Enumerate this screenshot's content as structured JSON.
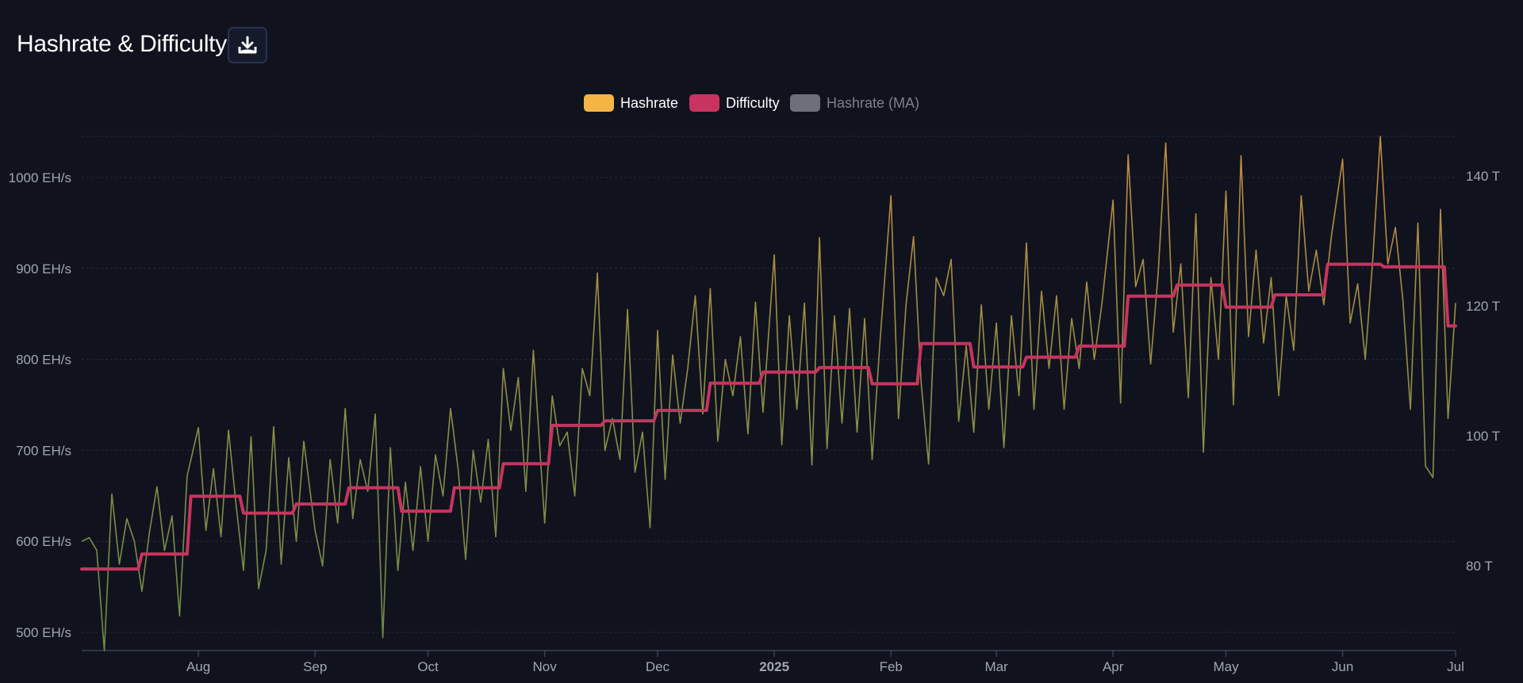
{
  "header": {
    "title": "Hashrate & Difficulty",
    "download_icon": "download-icon"
  },
  "colors": {
    "background": "#10131e",
    "hashrate_low": "#6f8a4a",
    "hashrate_high": "#c48a3f",
    "difficulty": "#c8345f",
    "legend_hashrate": "#f6b444",
    "legend_difficulty": "#c8345f",
    "legend_ma": "#6d6f7b"
  },
  "legend": [
    {
      "label": "Hashrate",
      "color": "#f6b444",
      "active": true
    },
    {
      "label": "Difficulty",
      "color": "#c8345f",
      "active": true
    },
    {
      "label": "Hashrate (MA)",
      "color": "#6d6f7b",
      "active": false
    }
  ],
  "chart_data": {
    "type": "line",
    "x_range": [
      "2024-07-01",
      "2025-07-01"
    ],
    "x_ticks": [
      {
        "label": "Aug",
        "date": "2024-08-01",
        "bold": false
      },
      {
        "label": "Sep",
        "date": "2024-09-01",
        "bold": false
      },
      {
        "label": "Oct",
        "date": "2024-10-01",
        "bold": false
      },
      {
        "label": "Nov",
        "date": "2024-11-01",
        "bold": false
      },
      {
        "label": "Dec",
        "date": "2024-12-01",
        "bold": false
      },
      {
        "label": "2025",
        "date": "2025-01-01",
        "bold": true
      },
      {
        "label": "Feb",
        "date": "2025-02-01",
        "bold": false
      },
      {
        "label": "Mar",
        "date": "2025-03-01",
        "bold": false
      },
      {
        "label": "Apr",
        "date": "2025-04-01",
        "bold": false
      },
      {
        "label": "May",
        "date": "2025-05-01",
        "bold": false
      },
      {
        "label": "Jun",
        "date": "2025-06-01",
        "bold": false
      },
      {
        "label": "Jul",
        "date": "2025-07-01",
        "bold": false
      }
    ],
    "y_left": {
      "unit": "EH/s",
      "range": [
        480,
        1045
      ],
      "ticks": [
        {
          "value": 500,
          "label": "500 EH/s"
        },
        {
          "value": 600,
          "label": "600 EH/s"
        },
        {
          "value": 700,
          "label": "700 EH/s"
        },
        {
          "value": 800,
          "label": "800 EH/s"
        },
        {
          "value": 900,
          "label": "900 EH/s"
        },
        {
          "value": 1000,
          "label": "1000 EH/s"
        }
      ]
    },
    "y_right": {
      "unit": "T",
      "range": [
        66,
        147
      ],
      "ticks": [
        {
          "value": 80,
          "label": "80 T"
        },
        {
          "value": 100,
          "label": "100 T"
        },
        {
          "value": 120,
          "label": "120 T"
        },
        {
          "value": 140,
          "label": "140 T"
        }
      ]
    },
    "series": [
      {
        "name": "Hashrate",
        "axis": "left",
        "unit": "EH/s",
        "points": [
          [
            "2024-07-01",
            600
          ],
          [
            "2024-07-03",
            604
          ],
          [
            "2024-07-05",
            590
          ],
          [
            "2024-07-07",
            480
          ],
          [
            "2024-07-09",
            652
          ],
          [
            "2024-07-11",
            575
          ],
          [
            "2024-07-13",
            625
          ],
          [
            "2024-07-15",
            600
          ],
          [
            "2024-07-17",
            545
          ],
          [
            "2024-07-19",
            610
          ],
          [
            "2024-07-21",
            660
          ],
          [
            "2024-07-23",
            590
          ],
          [
            "2024-07-25",
            628
          ],
          [
            "2024-07-27",
            518
          ],
          [
            "2024-07-29",
            672
          ],
          [
            "2024-08-01",
            725
          ],
          [
            "2024-08-03",
            612
          ],
          [
            "2024-08-05",
            680
          ],
          [
            "2024-08-07",
            605
          ],
          [
            "2024-08-09",
            722
          ],
          [
            "2024-08-11",
            640
          ],
          [
            "2024-08-13",
            568
          ],
          [
            "2024-08-15",
            715
          ],
          [
            "2024-08-17",
            548
          ],
          [
            "2024-08-19",
            590
          ],
          [
            "2024-08-21",
            726
          ],
          [
            "2024-08-23",
            575
          ],
          [
            "2024-08-25",
            692
          ],
          [
            "2024-08-27",
            600
          ],
          [
            "2024-08-29",
            710
          ],
          [
            "2024-09-01",
            612
          ],
          [
            "2024-09-03",
            573
          ],
          [
            "2024-09-05",
            690
          ],
          [
            "2024-09-07",
            620
          ],
          [
            "2024-09-09",
            746
          ],
          [
            "2024-09-11",
            625
          ],
          [
            "2024-09-13",
            690
          ],
          [
            "2024-09-15",
            655
          ],
          [
            "2024-09-17",
            740
          ],
          [
            "2024-09-19",
            494
          ],
          [
            "2024-09-21",
            703
          ],
          [
            "2024-09-23",
            568
          ],
          [
            "2024-09-25",
            665
          ],
          [
            "2024-09-27",
            590
          ],
          [
            "2024-09-29",
            682
          ],
          [
            "2024-10-01",
            600
          ],
          [
            "2024-10-03",
            695
          ],
          [
            "2024-10-05",
            650
          ],
          [
            "2024-10-07",
            746
          ],
          [
            "2024-10-09",
            680
          ],
          [
            "2024-10-11",
            580
          ],
          [
            "2024-10-13",
            700
          ],
          [
            "2024-10-15",
            643
          ],
          [
            "2024-10-17",
            712
          ],
          [
            "2024-10-19",
            605
          ],
          [
            "2024-10-21",
            790
          ],
          [
            "2024-10-23",
            722
          ],
          [
            "2024-10-25",
            780
          ],
          [
            "2024-10-27",
            655
          ],
          [
            "2024-10-29",
            810
          ],
          [
            "2024-11-01",
            620
          ],
          [
            "2024-11-03",
            760
          ],
          [
            "2024-11-05",
            705
          ],
          [
            "2024-11-07",
            720
          ],
          [
            "2024-11-09",
            650
          ],
          [
            "2024-11-11",
            790
          ],
          [
            "2024-11-13",
            760
          ],
          [
            "2024-11-15",
            895
          ],
          [
            "2024-11-17",
            700
          ],
          [
            "2024-11-19",
            735
          ],
          [
            "2024-11-21",
            690
          ],
          [
            "2024-11-23",
            855
          ],
          [
            "2024-11-25",
            676
          ],
          [
            "2024-11-27",
            720
          ],
          [
            "2024-11-29",
            615
          ],
          [
            "2024-12-01",
            832
          ],
          [
            "2024-12-03",
            668
          ],
          [
            "2024-12-05",
            805
          ],
          [
            "2024-12-07",
            730
          ],
          [
            "2024-12-09",
            790
          ],
          [
            "2024-12-11",
            870
          ],
          [
            "2024-12-13",
            740
          ],
          [
            "2024-12-15",
            878
          ],
          [
            "2024-12-17",
            710
          ],
          [
            "2024-12-19",
            800
          ],
          [
            "2024-12-21",
            760
          ],
          [
            "2024-12-23",
            825
          ],
          [
            "2024-12-25",
            718
          ],
          [
            "2024-12-27",
            863
          ],
          [
            "2024-12-29",
            742
          ],
          [
            "2025-01-01",
            915
          ],
          [
            "2025-01-03",
            706
          ],
          [
            "2025-01-05",
            848
          ],
          [
            "2025-01-07",
            745
          ],
          [
            "2025-01-09",
            862
          ],
          [
            "2025-01-11",
            684
          ],
          [
            "2025-01-13",
            934
          ],
          [
            "2025-01-15",
            702
          ],
          [
            "2025-01-17",
            848
          ],
          [
            "2025-01-19",
            730
          ],
          [
            "2025-01-21",
            856
          ],
          [
            "2025-01-23",
            720
          ],
          [
            "2025-01-25",
            845
          ],
          [
            "2025-01-27",
            690
          ],
          [
            "2025-01-29",
            815
          ],
          [
            "2025-02-01",
            980
          ],
          [
            "2025-02-03",
            735
          ],
          [
            "2025-02-05",
            860
          ],
          [
            "2025-02-07",
            935
          ],
          [
            "2025-02-09",
            775
          ],
          [
            "2025-02-11",
            685
          ],
          [
            "2025-02-13",
            890
          ],
          [
            "2025-02-15",
            870
          ],
          [
            "2025-02-17",
            910
          ],
          [
            "2025-02-19",
            732
          ],
          [
            "2025-02-21",
            815
          ],
          [
            "2025-02-23",
            720
          ],
          [
            "2025-02-25",
            860
          ],
          [
            "2025-02-27",
            745
          ],
          [
            "2025-03-01",
            840
          ],
          [
            "2025-03-03",
            703
          ],
          [
            "2025-03-05",
            848
          ],
          [
            "2025-03-07",
            760
          ],
          [
            "2025-03-09",
            928
          ],
          [
            "2025-03-11",
            745
          ],
          [
            "2025-03-13",
            875
          ],
          [
            "2025-03-15",
            790
          ],
          [
            "2025-03-17",
            870
          ],
          [
            "2025-03-19",
            745
          ],
          [
            "2025-03-21",
            845
          ],
          [
            "2025-03-23",
            790
          ],
          [
            "2025-03-25",
            885
          ],
          [
            "2025-03-27",
            800
          ],
          [
            "2025-03-29",
            860
          ],
          [
            "2025-04-01",
            975
          ],
          [
            "2025-04-03",
            752
          ],
          [
            "2025-04-05",
            1025
          ],
          [
            "2025-04-07",
            880
          ],
          [
            "2025-04-09",
            910
          ],
          [
            "2025-04-11",
            795
          ],
          [
            "2025-04-13",
            895
          ],
          [
            "2025-04-15",
            1038
          ],
          [
            "2025-04-17",
            830
          ],
          [
            "2025-04-19",
            905
          ],
          [
            "2025-04-21",
            758
          ],
          [
            "2025-04-23",
            960
          ],
          [
            "2025-04-25",
            698
          ],
          [
            "2025-04-27",
            890
          ],
          [
            "2025-04-29",
            800
          ],
          [
            "2025-05-01",
            985
          ],
          [
            "2025-05-03",
            750
          ],
          [
            "2025-05-05",
            1024
          ],
          [
            "2025-05-07",
            825
          ],
          [
            "2025-05-09",
            920
          ],
          [
            "2025-05-11",
            818
          ],
          [
            "2025-05-13",
            890
          ],
          [
            "2025-05-15",
            760
          ],
          [
            "2025-05-17",
            870
          ],
          [
            "2025-05-19",
            810
          ],
          [
            "2025-05-21",
            980
          ],
          [
            "2025-05-23",
            875
          ],
          [
            "2025-05-25",
            920
          ],
          [
            "2025-05-27",
            860
          ],
          [
            "2025-05-29",
            935
          ],
          [
            "2025-06-01",
            1020
          ],
          [
            "2025-06-03",
            840
          ],
          [
            "2025-06-05",
            883
          ],
          [
            "2025-06-07",
            800
          ],
          [
            "2025-06-09",
            910
          ],
          [
            "2025-06-11",
            1045
          ],
          [
            "2025-06-13",
            905
          ],
          [
            "2025-06-15",
            945
          ],
          [
            "2025-06-17",
            865
          ],
          [
            "2025-06-19",
            745
          ],
          [
            "2025-06-21",
            950
          ],
          [
            "2025-06-23",
            683
          ],
          [
            "2025-06-25",
            670
          ],
          [
            "2025-06-27",
            965
          ],
          [
            "2025-06-29",
            735
          ],
          [
            "2025-07-01",
            862
          ]
        ]
      },
      {
        "name": "Difficulty",
        "axis": "right",
        "unit": "T",
        "points": [
          [
            "2024-07-01",
            79.5
          ],
          [
            "2024-07-16",
            79.5
          ],
          [
            "2024-07-17",
            81.8
          ],
          [
            "2024-07-29",
            81.8
          ],
          [
            "2024-07-30",
            90.7
          ],
          [
            "2024-08-12",
            90.7
          ],
          [
            "2024-08-13",
            88.1
          ],
          [
            "2024-08-26",
            88.1
          ],
          [
            "2024-08-27",
            89.5
          ],
          [
            "2024-09-09",
            89.5
          ],
          [
            "2024-09-10",
            92.0
          ],
          [
            "2024-09-23",
            92.0
          ],
          [
            "2024-09-24",
            88.4
          ],
          [
            "2024-10-07",
            88.4
          ],
          [
            "2024-10-08",
            92.0
          ],
          [
            "2024-10-20",
            92.0
          ],
          [
            "2024-10-21",
            95.7
          ],
          [
            "2024-11-02",
            95.7
          ],
          [
            "2024-11-03",
            101.6
          ],
          [
            "2024-11-16",
            101.6
          ],
          [
            "2024-11-17",
            102.3
          ],
          [
            "2024-11-30",
            102.3
          ],
          [
            "2024-12-01",
            103.9
          ],
          [
            "2024-12-14",
            103.9
          ],
          [
            "2024-12-15",
            108.1
          ],
          [
            "2024-12-28",
            108.1
          ],
          [
            "2024-12-29",
            109.8
          ],
          [
            "2025-01-12",
            109.8
          ],
          [
            "2025-01-13",
            110.5
          ],
          [
            "2025-01-26",
            110.5
          ],
          [
            "2025-01-27",
            108.0
          ],
          [
            "2025-02-08",
            108.0
          ],
          [
            "2025-02-09",
            114.2
          ],
          [
            "2025-02-22",
            114.2
          ],
          [
            "2025-02-23",
            110.6
          ],
          [
            "2025-03-08",
            110.6
          ],
          [
            "2025-03-09",
            112.1
          ],
          [
            "2025-03-22",
            112.1
          ],
          [
            "2025-03-23",
            113.8
          ],
          [
            "2025-04-04",
            113.8
          ],
          [
            "2025-04-05",
            121.5
          ],
          [
            "2025-04-17",
            121.5
          ],
          [
            "2025-04-18",
            123.2
          ],
          [
            "2025-04-30",
            123.2
          ],
          [
            "2025-05-01",
            119.8
          ],
          [
            "2025-05-13",
            119.8
          ],
          [
            "2025-05-14",
            121.7
          ],
          [
            "2025-05-27",
            121.7
          ],
          [
            "2025-05-28",
            126.4
          ],
          [
            "2025-06-11",
            126.4
          ],
          [
            "2025-06-12",
            126.0
          ],
          [
            "2025-06-28",
            126.0
          ],
          [
            "2025-06-29",
            116.9
          ],
          [
            "2025-07-01",
            116.9
          ]
        ]
      }
    ],
    "legend_position": "top-center",
    "grid": true
  }
}
